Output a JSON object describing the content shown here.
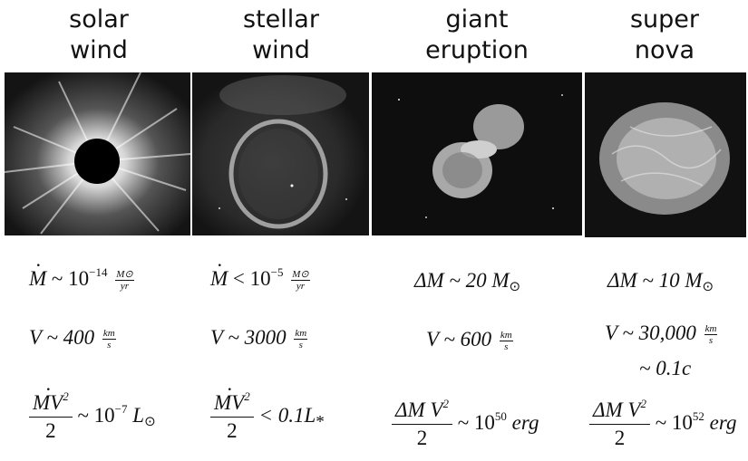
{
  "columns": [
    {
      "title": [
        "solar",
        "wind"
      ],
      "image": "corona-eclipse-photo",
      "mass": {
        "symbol": "M",
        "rel": "~ 10",
        "exp": "−14",
        "num": "M⊙",
        "den": "yr"
      },
      "velocity": {
        "lead": "V ~ 400",
        "num": "km",
        "den": "s"
      },
      "energy": {
        "num": "MV",
        "exp": "2",
        "den": "2",
        "rel": "~ 10",
        "rexp": "−7",
        "unit": "L",
        "sub": "⊙"
      }
    },
    {
      "title": [
        "stellar",
        "wind"
      ],
      "image": "bubble-nebula-photo",
      "mass": {
        "symbol": "M",
        "rel": "< 10",
        "exp": "−5",
        "num": "M⊙",
        "den": "yr"
      },
      "velocity": {
        "lead": "V ~ 3000",
        "num": "km",
        "den": "s"
      },
      "energy": {
        "num": "MV",
        "exp": "2",
        "den": "2",
        "tail": "< 0.1L",
        "sub": "*"
      }
    },
    {
      "title": [
        "giant",
        "eruption"
      ],
      "image": "eta-carinae-photo",
      "mass": {
        "text": "ΔM ~ 20 M",
        "sub": "⊙"
      },
      "velocity": {
        "lead": "V ~ 600",
        "num": "km",
        "den": "s"
      },
      "energy": {
        "num": "ΔM V",
        "exp": "2",
        "den": "2",
        "rel": "~ 10",
        "rexp": "50",
        "unit": "erg"
      }
    },
    {
      "title": [
        "super",
        "nova"
      ],
      "image": "crab-nebula-photo",
      "mass": {
        "text": "ΔM ~ 10 M",
        "sub": "⊙"
      },
      "velocity": {
        "lead": "V ~ 30,000",
        "num": "km",
        "den": "s",
        "extra": "~ 0.1c"
      },
      "energy": {
        "num": "ΔM V",
        "exp": "2",
        "den": "2",
        "rel": "~ 10",
        "rexp": "52",
        "unit": "erg"
      }
    }
  ]
}
